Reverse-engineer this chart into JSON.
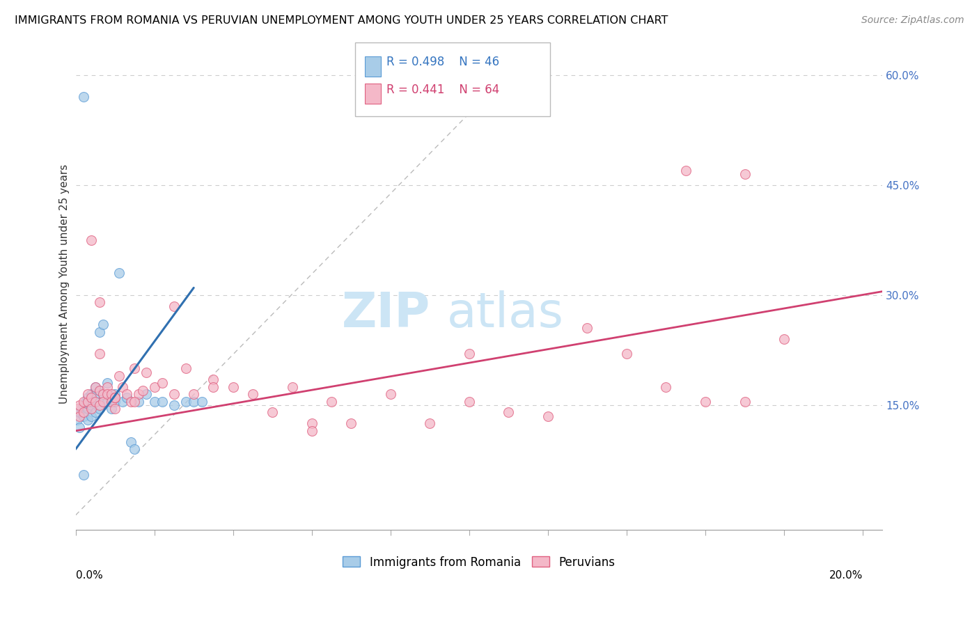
{
  "title": "IMMIGRANTS FROM ROMANIA VS PERUVIAN UNEMPLOYMENT AMONG YOUTH UNDER 25 YEARS CORRELATION CHART",
  "source": "Source: ZipAtlas.com",
  "ylabel": "Unemployment Among Youth under 25 years",
  "right_yticks": [
    "60.0%",
    "45.0%",
    "30.0%",
    "15.0%"
  ],
  "right_ytick_vals": [
    0.6,
    0.45,
    0.3,
    0.15
  ],
  "legend_blue_r": "R = 0.498",
  "legend_blue_n": "N = 46",
  "legend_pink_r": "R = 0.441",
  "legend_pink_n": "N = 64",
  "blue_fill": "#a8cce8",
  "blue_edge": "#5b9bd5",
  "pink_fill": "#f4b8c8",
  "pink_edge": "#e06080",
  "blue_line_color": "#3070b0",
  "pink_line_color": "#d04070",
  "watermark_zip": "ZIP",
  "watermark_atlas": "atlas",
  "watermark_color": "#cce5f5",
  "blue_scatter_x": [
    0.0005,
    0.001,
    0.001,
    0.0015,
    0.002,
    0.002,
    0.002,
    0.0025,
    0.003,
    0.003,
    0.003,
    0.003,
    0.004,
    0.004,
    0.004,
    0.004,
    0.005,
    0.005,
    0.005,
    0.005,
    0.006,
    0.006,
    0.006,
    0.007,
    0.007,
    0.007,
    0.008,
    0.008,
    0.009,
    0.009,
    0.01,
    0.01,
    0.011,
    0.012,
    0.013,
    0.014,
    0.015,
    0.016,
    0.018,
    0.02,
    0.022,
    0.025,
    0.028,
    0.03,
    0.032,
    0.002
  ],
  "blue_scatter_y": [
    0.13,
    0.14,
    0.12,
    0.145,
    0.15,
    0.135,
    0.57,
    0.155,
    0.13,
    0.145,
    0.16,
    0.155,
    0.135,
    0.15,
    0.155,
    0.165,
    0.14,
    0.155,
    0.165,
    0.175,
    0.25,
    0.17,
    0.145,
    0.26,
    0.155,
    0.165,
    0.18,
    0.155,
    0.145,
    0.16,
    0.165,
    0.155,
    0.33,
    0.155,
    0.16,
    0.1,
    0.09,
    0.155,
    0.165,
    0.155,
    0.155,
    0.15,
    0.155,
    0.155,
    0.155,
    0.055
  ],
  "pink_scatter_x": [
    0.0005,
    0.001,
    0.001,
    0.002,
    0.002,
    0.003,
    0.003,
    0.004,
    0.004,
    0.005,
    0.005,
    0.006,
    0.006,
    0.006,
    0.007,
    0.007,
    0.008,
    0.008,
    0.009,
    0.009,
    0.01,
    0.01,
    0.011,
    0.012,
    0.013,
    0.014,
    0.015,
    0.016,
    0.017,
    0.018,
    0.02,
    0.022,
    0.025,
    0.028,
    0.03,
    0.035,
    0.04,
    0.045,
    0.05,
    0.055,
    0.06,
    0.065,
    0.07,
    0.08,
    0.09,
    0.1,
    0.11,
    0.12,
    0.13,
    0.14,
    0.15,
    0.16,
    0.17,
    0.18,
    0.004,
    0.006,
    0.01,
    0.015,
    0.025,
    0.035,
    0.06,
    0.1,
    0.155,
    0.17
  ],
  "pink_scatter_y": [
    0.145,
    0.135,
    0.15,
    0.14,
    0.155,
    0.155,
    0.165,
    0.145,
    0.16,
    0.155,
    0.175,
    0.15,
    0.17,
    0.22,
    0.165,
    0.155,
    0.175,
    0.165,
    0.165,
    0.155,
    0.145,
    0.16,
    0.19,
    0.175,
    0.165,
    0.155,
    0.2,
    0.165,
    0.17,
    0.195,
    0.175,
    0.18,
    0.165,
    0.2,
    0.165,
    0.185,
    0.175,
    0.165,
    0.14,
    0.175,
    0.125,
    0.155,
    0.125,
    0.165,
    0.125,
    0.22,
    0.14,
    0.135,
    0.255,
    0.22,
    0.175,
    0.155,
    0.465,
    0.24,
    0.375,
    0.29,
    0.16,
    0.155,
    0.285,
    0.175,
    0.115,
    0.155,
    0.47,
    0.155
  ],
  "xlim": [
    0.0,
    0.205
  ],
  "ylim": [
    -0.02,
    0.65
  ],
  "blue_line_x": [
    0.0,
    0.03
  ],
  "blue_line_y": [
    0.09,
    0.31
  ],
  "pink_line_x": [
    0.0,
    0.205
  ],
  "pink_line_y": [
    0.115,
    0.305
  ],
  "diag_line_x": [
    0.0,
    0.115
  ],
  "diag_line_y": [
    0.0,
    0.63
  ]
}
